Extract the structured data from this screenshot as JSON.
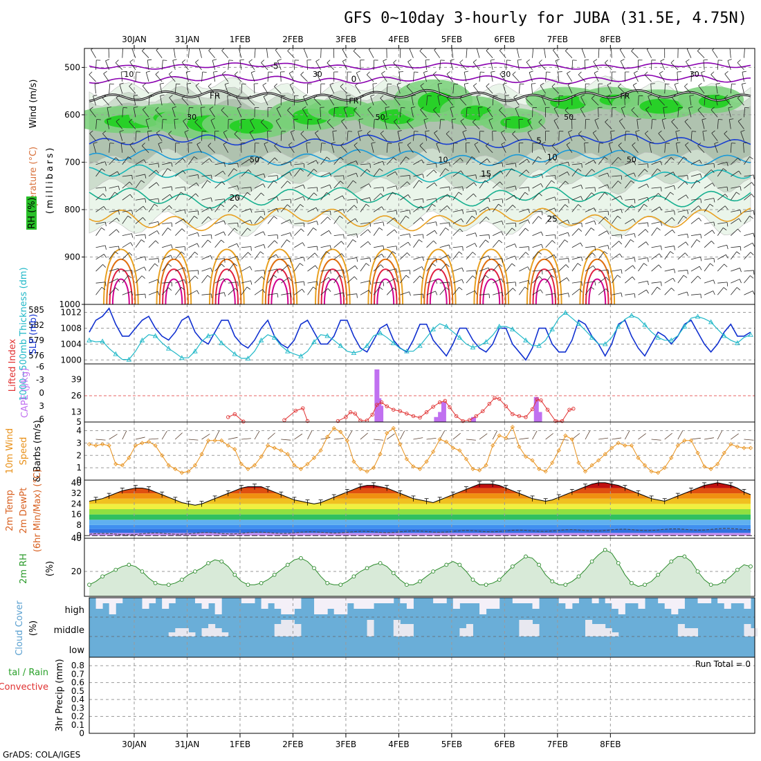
{
  "title": "GFS 0~10day 3-hourly for JUBA (31.5E, 4.75N)",
  "credit": "GrADS: COLA/IGES",
  "colors": {
    "frame": "#000000",
    "grid": "#9a9a9a",
    "purple": "#8a00b0",
    "blue": "#1a3fd0",
    "lightblue": "#1a9ad8",
    "teal": "#19b8b8",
    "green": "#18b090",
    "orange": "#e8a020",
    "darkorange": "#e07010",
    "red": "#e02040",
    "magenta": "#d00090",
    "slp": "#1030d0",
    "thick": "#20b8c8",
    "li": "#e03030",
    "cape": "#c070f0",
    "wind10": "#e89018",
    "rh": "#2a8a2a",
    "cloud": "#6aaed8",
    "cloudgap": "#f4f0f8"
  },
  "chart_data": [
    {
      "panel": "upper-air",
      "type": "contour",
      "xticks": [
        "30JAN",
        "31JAN",
        "1FEB",
        "2FEB",
        "3FEB",
        "4FEB",
        "5FEB",
        "6FEB",
        "7FEB",
        "8FEB"
      ],
      "ylabel_wind": "Wind (m/s)",
      "ylabel_temp": "Temperature (°C)",
      "ylabel_rh": "RH (%)",
      "ylabel_p": "(millibars)",
      "yticks": [
        "500",
        "600",
        "700",
        "800",
        "900",
        "1000"
      ],
      "ylim": [
        460,
        1000
      ],
      "isotherms": [
        {
          "label": "-5",
          "level": 497
        },
        {
          "label": "0",
          "level": 525
        },
        {
          "label": "FR",
          "level": 560
        },
        {
          "label": "5",
          "level": 655
        },
        {
          "label": "10",
          "level": 690
        },
        {
          "label": "15",
          "level": 725
        },
        {
          "label": "20",
          "level": 775
        },
        {
          "label": "25",
          "level": 820
        }
      ],
      "rh_labels": [
        "10",
        "30",
        "50",
        "30",
        "50",
        "10",
        "30",
        "50",
        "50",
        "30"
      ]
    },
    {
      "panel": "slp-thickness",
      "type": "line",
      "ylabel_left": "1000~500mb Thickness (dm)",
      "ylabel_right": "SLP (mb)",
      "yticks_left": [
        "585",
        "582",
        "579",
        "576"
      ],
      "yticks_right": [
        "1012",
        "1008",
        "1004",
        "1000"
      ],
      "ylim_slp": [
        999,
        1014
      ],
      "series": [
        {
          "name": "SLP",
          "values": [
            1007,
            1010,
            1011,
            1013,
            1009,
            1006,
            1006,
            1008,
            1010,
            1011,
            1008,
            1006,
            1005,
            1007,
            1010,
            1011,
            1007,
            1005,
            1004,
            1007,
            1010,
            1010,
            1006,
            1004,
            1003,
            1005,
            1008,
            1010,
            1006,
            1004,
            1003,
            1005,
            1009,
            1010,
            1007,
            1004,
            1004,
            1006,
            1010,
            1010,
            1006,
            1003,
            1002,
            1005,
            1008,
            1009,
            1005,
            1003,
            1002,
            1005,
            1009,
            1009,
            1005,
            1003,
            1001,
            1004,
            1008,
            1008,
            1005,
            1003,
            1002,
            1004,
            1008,
            1008,
            1004,
            1002,
            1000,
            1003,
            1008,
            1008,
            1004,
            1002,
            1002,
            1005,
            1010,
            1009,
            1006,
            1004,
            1001,
            1004,
            1009,
            1010,
            1006,
            1003,
            1001,
            1004,
            1007,
            1006,
            1004,
            1006,
            1009,
            1010,
            1007,
            1004,
            1002,
            1004,
            1007,
            1009,
            1006,
            1006,
            1007
          ]
        },
        {
          "name": "Thickness",
          "values": [
            579.5,
            579.2,
            579.3,
            578.0,
            577.0,
            576.0,
            576.0,
            577.5,
            579.5,
            580.5,
            580.3,
            579.0,
            578.0,
            577.2,
            576.3,
            576.3,
            577.5,
            579.3,
            580.3,
            580.6,
            579.0,
            578.0,
            577.0,
            576.2,
            576.2,
            577.5,
            579.5,
            580.5,
            580.0,
            578.5,
            577.5,
            577.0,
            576.6,
            577.5,
            579.2,
            580.5,
            580.3,
            579.5,
            578.5,
            577.5,
            577.2,
            577.5,
            578.5,
            580.3,
            580.8,
            580.0,
            579.0,
            578.0,
            577.5,
            577.5,
            578.5,
            580.0,
            581.5,
            582.5,
            582.0,
            581.0,
            580.0,
            578.8,
            578.2,
            578.5,
            579.2,
            580.4,
            582.0,
            582.0,
            581.5,
            580.5,
            579.5,
            578.5,
            578.5,
            579.5,
            581.5,
            583.5,
            584.5,
            583.5,
            582.5,
            581.3,
            580.0,
            578.8,
            578.8,
            580.0,
            582.0,
            583.3,
            584.0,
            583.5,
            582.3,
            581.0,
            580.0,
            579.5,
            579.5,
            580.3,
            582.0,
            583.5,
            583.8,
            583.4,
            582.8,
            581.5,
            580.3,
            579.5,
            579.0,
            580.0,
            580.5
          ]
        }
      ]
    },
    {
      "panel": "cape-li",
      "type": "bar",
      "ylabel_left": "Lifted Index",
      "ylabel_right": "CAPE (J/kg)",
      "yticks_li": [
        "-6",
        "-3",
        "0",
        "3",
        "6"
      ],
      "yticks_cape": [
        "39",
        "26",
        "13",
        "5"
      ],
      "cape_bars": [
        {
          "t": 43.5,
          "v": 47
        },
        {
          "t": 43.8,
          "v": 24
        },
        {
          "t": 44.1,
          "v": 18
        },
        {
          "t": 52.5,
          "v": 9
        },
        {
          "t": 53.1,
          "v": 13
        },
        {
          "t": 53.6,
          "v": 21
        },
        {
          "t": 58.1,
          "v": 9
        },
        {
          "t": 67.6,
          "v": 25
        },
        {
          "t": 68.1,
          "v": 13
        }
      ],
      "li_points": [
        {
          "t": 21.0,
          "v": 5.0
        },
        {
          "t": 22.0,
          "v": 4.4
        },
        {
          "t": 23.3,
          "v": 5.9
        },
        {
          "t": 29.5,
          "v": 5.6
        },
        {
          "t": 31.2,
          "v": 3.7
        },
        {
          "t": 32.3,
          "v": 3.2
        },
        {
          "t": 33.0,
          "v": 5.8
        },
        {
          "t": 37.6,
          "v": 5.8
        },
        {
          "t": 38.8,
          "v": 5.0
        },
        {
          "t": 39.5,
          "v": 4.0
        },
        {
          "t": 40.2,
          "v": 4.3
        },
        {
          "t": 41.0,
          "v": 5.7
        },
        {
          "t": 42.0,
          "v": 5.7
        },
        {
          "t": 42.8,
          "v": 4.5
        },
        {
          "t": 43.5,
          "v": 2.5
        },
        {
          "t": 44.2,
          "v": 2.0
        },
        {
          "t": 45.0,
          "v": 2.8
        },
        {
          "t": 46.0,
          "v": 3.5
        },
        {
          "t": 47.0,
          "v": 3.8
        },
        {
          "t": 48.0,
          "v": 4.3
        },
        {
          "t": 49.0,
          "v": 4.8
        },
        {
          "t": 50.0,
          "v": 5.1
        },
        {
          "t": 51.0,
          "v": 4.0
        },
        {
          "t": 52.0,
          "v": 2.9
        },
        {
          "t": 53.0,
          "v": 2.0
        },
        {
          "t": 53.8,
          "v": 1.7
        },
        {
          "t": 54.5,
          "v": 3.0
        },
        {
          "t": 55.5,
          "v": 4.8
        },
        {
          "t": 56.5,
          "v": 5.8
        },
        {
          "t": 57.5,
          "v": 5.6
        },
        {
          "t": 58.5,
          "v": 4.8
        },
        {
          "t": 59.5,
          "v": 3.8
        },
        {
          "t": 60.5,
          "v": 2.3
        },
        {
          "t": 61.3,
          "v": 1.1
        },
        {
          "t": 62.0,
          "v": 1.3
        },
        {
          "t": 63.0,
          "v": 2.8
        },
        {
          "t": 64.0,
          "v": 4.4
        },
        {
          "t": 65.0,
          "v": 4.8
        },
        {
          "t": 66.0,
          "v": 5.0
        },
        {
          "t": 67.0,
          "v": 3.4
        },
        {
          "t": 67.7,
          "v": 1.4
        },
        {
          "t": 68.3,
          "v": 1.6
        },
        {
          "t": 69.3,
          "v": 3.5
        },
        {
          "t": 70.5,
          "v": 5.8
        },
        {
          "t": 71.5,
          "v": 5.8
        },
        {
          "t": 72.6,
          "v": 3.5
        },
        {
          "t": 73.2,
          "v": 3.3
        }
      ]
    },
    {
      "panel": "wind10m",
      "type": "line",
      "ylabel": "10m Wind Speed & Barbs (m/s)",
      "yticks": [
        "4",
        "3",
        "2",
        "1",
        "0"
      ],
      "ylim": [
        0,
        4.7
      ],
      "values": [
        2.9,
        2.8,
        2.9,
        2.8,
        1.3,
        1.2,
        1.8,
        2.8,
        3.0,
        3.1,
        2.8,
        2.0,
        1.2,
        0.9,
        0.6,
        0.7,
        1.2,
        2.1,
        3.2,
        3.2,
        3.2,
        2.8,
        2.5,
        1.3,
        0.9,
        1.2,
        1.9,
        2.8,
        2.6,
        2.4,
        2.1,
        1.2,
        0.9,
        1.3,
        1.8,
        2.4,
        3.5,
        4.2,
        3.9,
        3.2,
        1.5,
        0.9,
        0.7,
        1.0,
        2.1,
        3.8,
        4.2,
        2.9,
        1.7,
        1.1,
        0.9,
        1.5,
        2.3,
        3.3,
        3.1,
        2.6,
        2.4,
        1.7,
        0.9,
        0.8,
        1.2,
        2.8,
        3.6,
        3.4,
        4.3,
        2.7,
        1.9,
        1.6,
        0.9,
        0.7,
        1.4,
        2.4,
        3.6,
        3.3,
        1.4,
        0.7,
        1.2,
        1.6,
        2.1,
        2.6,
        3.0,
        2.8,
        2.8,
        1.8,
        1.2,
        0.7,
        0.6,
        1.0,
        1.8,
        2.8,
        3.2,
        3.2,
        2.2,
        1.1,
        0.9,
        1.3,
        2.2,
        2.9,
        2.7,
        2.6,
        2.6
      ]
    },
    {
      "panel": "temp2m",
      "type": "area",
      "ylabel": "2m Temp 2m DewPt (6hr Min/Max) (°C)",
      "yticks": [
        "40",
        "32",
        "24",
        "16",
        "8",
        "0"
      ],
      "ylim": [
        -2,
        42
      ],
      "values": [
        26,
        27,
        28,
        30,
        32,
        34,
        35,
        36,
        36,
        35,
        33,
        31,
        29,
        27,
        25,
        24,
        23,
        24,
        26,
        28,
        30,
        32,
        34,
        36,
        37,
        37,
        37,
        35,
        33,
        31,
        29,
        27,
        26,
        25,
        24,
        25,
        27,
        29,
        31,
        33,
        35,
        37,
        38,
        38,
        37,
        36,
        34,
        32,
        30,
        28,
        27,
        26,
        25,
        27,
        29,
        31,
        33,
        35,
        37,
        39,
        39,
        39,
        38,
        36,
        34,
        32,
        30,
        28,
        27,
        26,
        27,
        29,
        31,
        33,
        35,
        37,
        39,
        40,
        40,
        39,
        38,
        36,
        34,
        32,
        30,
        28,
        27,
        26,
        28,
        30,
        32,
        34,
        36,
        38,
        39,
        40,
        39,
        38,
        36,
        33,
        31
      ]
    },
    {
      "panel": "rh2m",
      "type": "area",
      "ylabel": "2m RH (%)",
      "yticks": [
        "40",
        "20"
      ],
      "ylim": [
        5,
        40
      ],
      "values": [
        12,
        14,
        17,
        19,
        21,
        23,
        24,
        23,
        20,
        16,
        13,
        12,
        12,
        13,
        15,
        18,
        20,
        22,
        25,
        27,
        26,
        23,
        18,
        14,
        12,
        12,
        13,
        15,
        18,
        21,
        24,
        27,
        28,
        26,
        22,
        17,
        13,
        12,
        12,
        14,
        17,
        20,
        22,
        24,
        25,
        23,
        19,
        15,
        12,
        12,
        14,
        17,
        20,
        22,
        24,
        26,
        24,
        20,
        15,
        12,
        12,
        13,
        15,
        19,
        23,
        26,
        29,
        28,
        24,
        18,
        14,
        12,
        12,
        14,
        17,
        21,
        26,
        30,
        33,
        31,
        25,
        18,
        13,
        11,
        12,
        14,
        18,
        22,
        26,
        29,
        29,
        26,
        20,
        15,
        12,
        12,
        14,
        17,
        21,
        24,
        23
      ]
    },
    {
      "panel": "cloud",
      "type": "heatmap",
      "ylabel": "Cloud Cover (%)",
      "layers": [
        "high",
        "middle",
        "low"
      ]
    },
    {
      "panel": "precip",
      "type": "bar",
      "ylabel_left": "Total / Rain Convective",
      "ylabel_right": "3hr Precip (mm)",
      "yticks": [
        "0.8",
        "0.6",
        "0.4",
        "0.2",
        "0"
      ],
      "run_total": "Run Total = 0",
      "values": []
    }
  ]
}
